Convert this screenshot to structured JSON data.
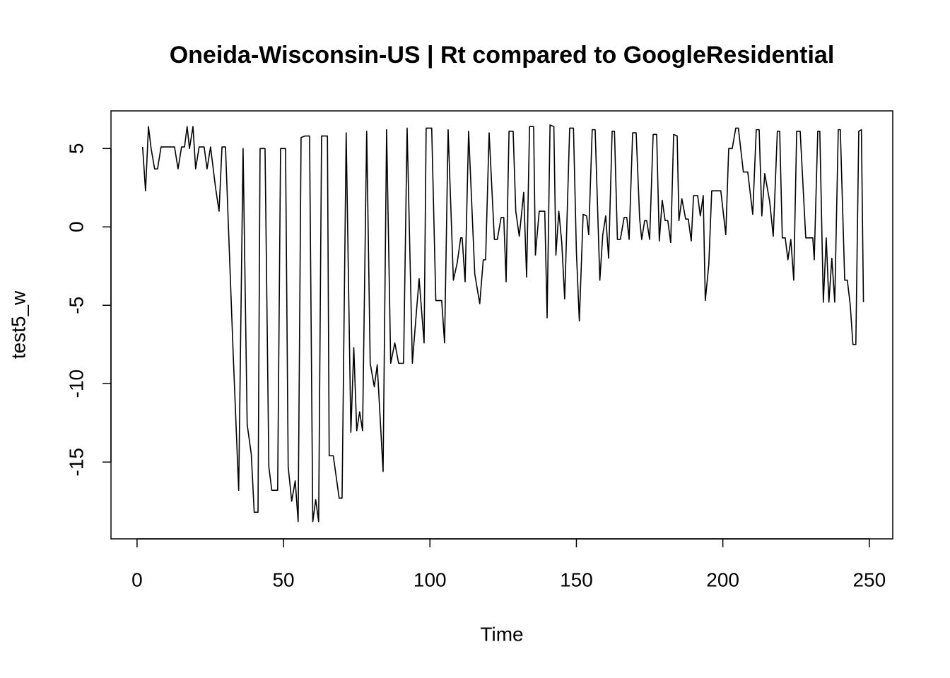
{
  "chart_data": {
    "type": "line",
    "title": "Oneida-Wisconsin-US | Rt compared to GoogleResidential",
    "xlabel": "Time",
    "ylabel": "test5_w",
    "xlim": [
      -8.9,
      258
    ],
    "ylim": [
      -19.9,
      7.4
    ],
    "xticks": [
      0,
      50,
      100,
      150,
      200,
      250
    ],
    "yticks": [
      -15,
      -10,
      -5,
      0,
      5
    ],
    "color": "#000000",
    "x": [
      1.9,
      2.9,
      3.9,
      4.8,
      6,
      7,
      8.2,
      12.8,
      14,
      15.2,
      16.2,
      17.1,
      17.9,
      19.1,
      20,
      21.2,
      22.9,
      23.9,
      25.1,
      26.8,
      28,
      29,
      30.2,
      31.4,
      32.8,
      34.7,
      36.2,
      37.6,
      39,
      40,
      41.3,
      42,
      43.7,
      45,
      46,
      48,
      49,
      50.7,
      51.6,
      52.8,
      54,
      55,
      56,
      57.4,
      58.9,
      60,
      61,
      62,
      63,
      65,
      65.6,
      67,
      69,
      70,
      71.4,
      73,
      74,
      75,
      76,
      77,
      78.4,
      79.6,
      81,
      82,
      84,
      85.2,
      86.6,
      88,
      89.3,
      91,
      92.2,
      94,
      95,
      96.3,
      98,
      98.7,
      100.6,
      102,
      104,
      105,
      106.2,
      108,
      109.3,
      110.5,
      111,
      112,
      113.2,
      115.3,
      117,
      118.2,
      119,
      120.2,
      122,
      123,
      124.3,
      125.2,
      126,
      127,
      128.4,
      129.3,
      130.5,
      132,
      133,
      134,
      135.4,
      136,
      137.3,
      139.2,
      140,
      141,
      142.3,
      143,
      144,
      145,
      146,
      147.7,
      149,
      150,
      151,
      152.3,
      153.5,
      154.2,
      155.4,
      156.4,
      158,
      159,
      160,
      161,
      162.2,
      163,
      164,
      165,
      166.3,
      167.2,
      168,
      169.2,
      170.4,
      171.6,
      172.3,
      173.3,
      174,
      175,
      176.2,
      177.4,
      178.3,
      179.3,
      180.3,
      181.2,
      182.2,
      183.2,
      184.4,
      185,
      186,
      187.3,
      188.2,
      189.2,
      190,
      191.4,
      192.3,
      193.3,
      194,
      195.2,
      196.2,
      198.4,
      199.3,
      201,
      202,
      203.2,
      204.4,
      205.3,
      207,
      208.5,
      210.2,
      211.4,
      212.4,
      213.3,
      214.3,
      216,
      217.2,
      218.6,
      219.4,
      220.3,
      221.3,
      222.2,
      223.2,
      224.2,
      225.2,
      226.4,
      228.3,
      229.5,
      230.7,
      231.2,
      232.4,
      233.1,
      234.3,
      235.3,
      236.2,
      237.2,
      238.2,
      239.4,
      240.1,
      241.6,
      242.5,
      243.5,
      244.4,
      245.4,
      246.4,
      247.3,
      248
    ],
    "values": [
      5.1,
      2.3,
      6.4,
      5.0,
      3.7,
      3.7,
      5.1,
      5.1,
      3.7,
      5.1,
      5.1,
      6.4,
      5.0,
      6.4,
      3.7,
      5.1,
      5.1,
      3.7,
      5.1,
      2.5,
      1.0,
      5.1,
      5.1,
      -1,
      -8,
      -16.8,
      5.0,
      -12.6,
      -14.5,
      -18.2,
      -18.2,
      5.0,
      5.0,
      -15.3,
      -16.8,
      -16.8,
      5.0,
      5.0,
      -15.3,
      -17.5,
      -16.2,
      -18.8,
      5.7,
      5.8,
      5.8,
      -18.8,
      -17.4,
      -18.8,
      5.8,
      5.8,
      -14.6,
      -14.6,
      -17.3,
      -17.3,
      6.0,
      -13.1,
      -7.7,
      -13,
      -11.8,
      -13,
      6.1,
      -8.7,
      -10.2,
      -8.8,
      -15.6,
      6.2,
      -8.7,
      -7.4,
      -8.7,
      -8.7,
      6.3,
      -8.7,
      -6.3,
      -3.3,
      -7.4,
      6.3,
      6.3,
      -4.7,
      -4.7,
      -7.4,
      6.2,
      -3.4,
      -2.3,
      -0.7,
      -0.7,
      -3.5,
      6.1,
      -3,
      -4.9,
      -2.1,
      -2.1,
      6.0,
      -0.8,
      -0.8,
      0.6,
      0.6,
      -3.5,
      6.1,
      6.1,
      1.0,
      -0.6,
      2.2,
      -3.2,
      6.4,
      6.4,
      -1.8,
      1.0,
      1.0,
      -5.8,
      6.5,
      6.4,
      -1.8,
      1.0,
      -1,
      -4.6,
      6.3,
      6.3,
      -1.6,
      -6.0,
      0.8,
      0.7,
      -0.5,
      6.2,
      6.2,
      -3.4,
      -0.5,
      0.7,
      -2.0,
      6.1,
      6.1,
      -0.8,
      -0.8,
      0.6,
      0.6,
      -0.8,
      6.0,
      6.0,
      0.5,
      -0.8,
      0.4,
      0.4,
      -0.8,
      5.9,
      5.9,
      -0.9,
      1.7,
      0.4,
      0.4,
      -1.0,
      5.9,
      5.8,
      0.4,
      1.8,
      0.5,
      0.5,
      -0.9,
      2.0,
      2.0,
      0.7,
      2.0,
      -4.7,
      -2.4,
      2.3,
      2.3,
      2.3,
      -0.5,
      5.0,
      5.0,
      6.3,
      6.3,
      3.5,
      3.5,
      0.8,
      6.2,
      6.2,
      0.7,
      3.4,
      1.6,
      -0.6,
      6.1,
      6.1,
      -0.7,
      -0.7,
      -2.1,
      -0.8,
      -3.4,
      6.1,
      6.1,
      -0.7,
      -0.7,
      -0.7,
      -2.1,
      6.1,
      6.1,
      -4.8,
      -0.7,
      -4.8,
      -2.0,
      -4.8,
      6.2,
      6.2,
      -3.4,
      -3.4,
      -5,
      -7.5,
      -7.5,
      6.1,
      6.2,
      -4.8
    ]
  }
}
